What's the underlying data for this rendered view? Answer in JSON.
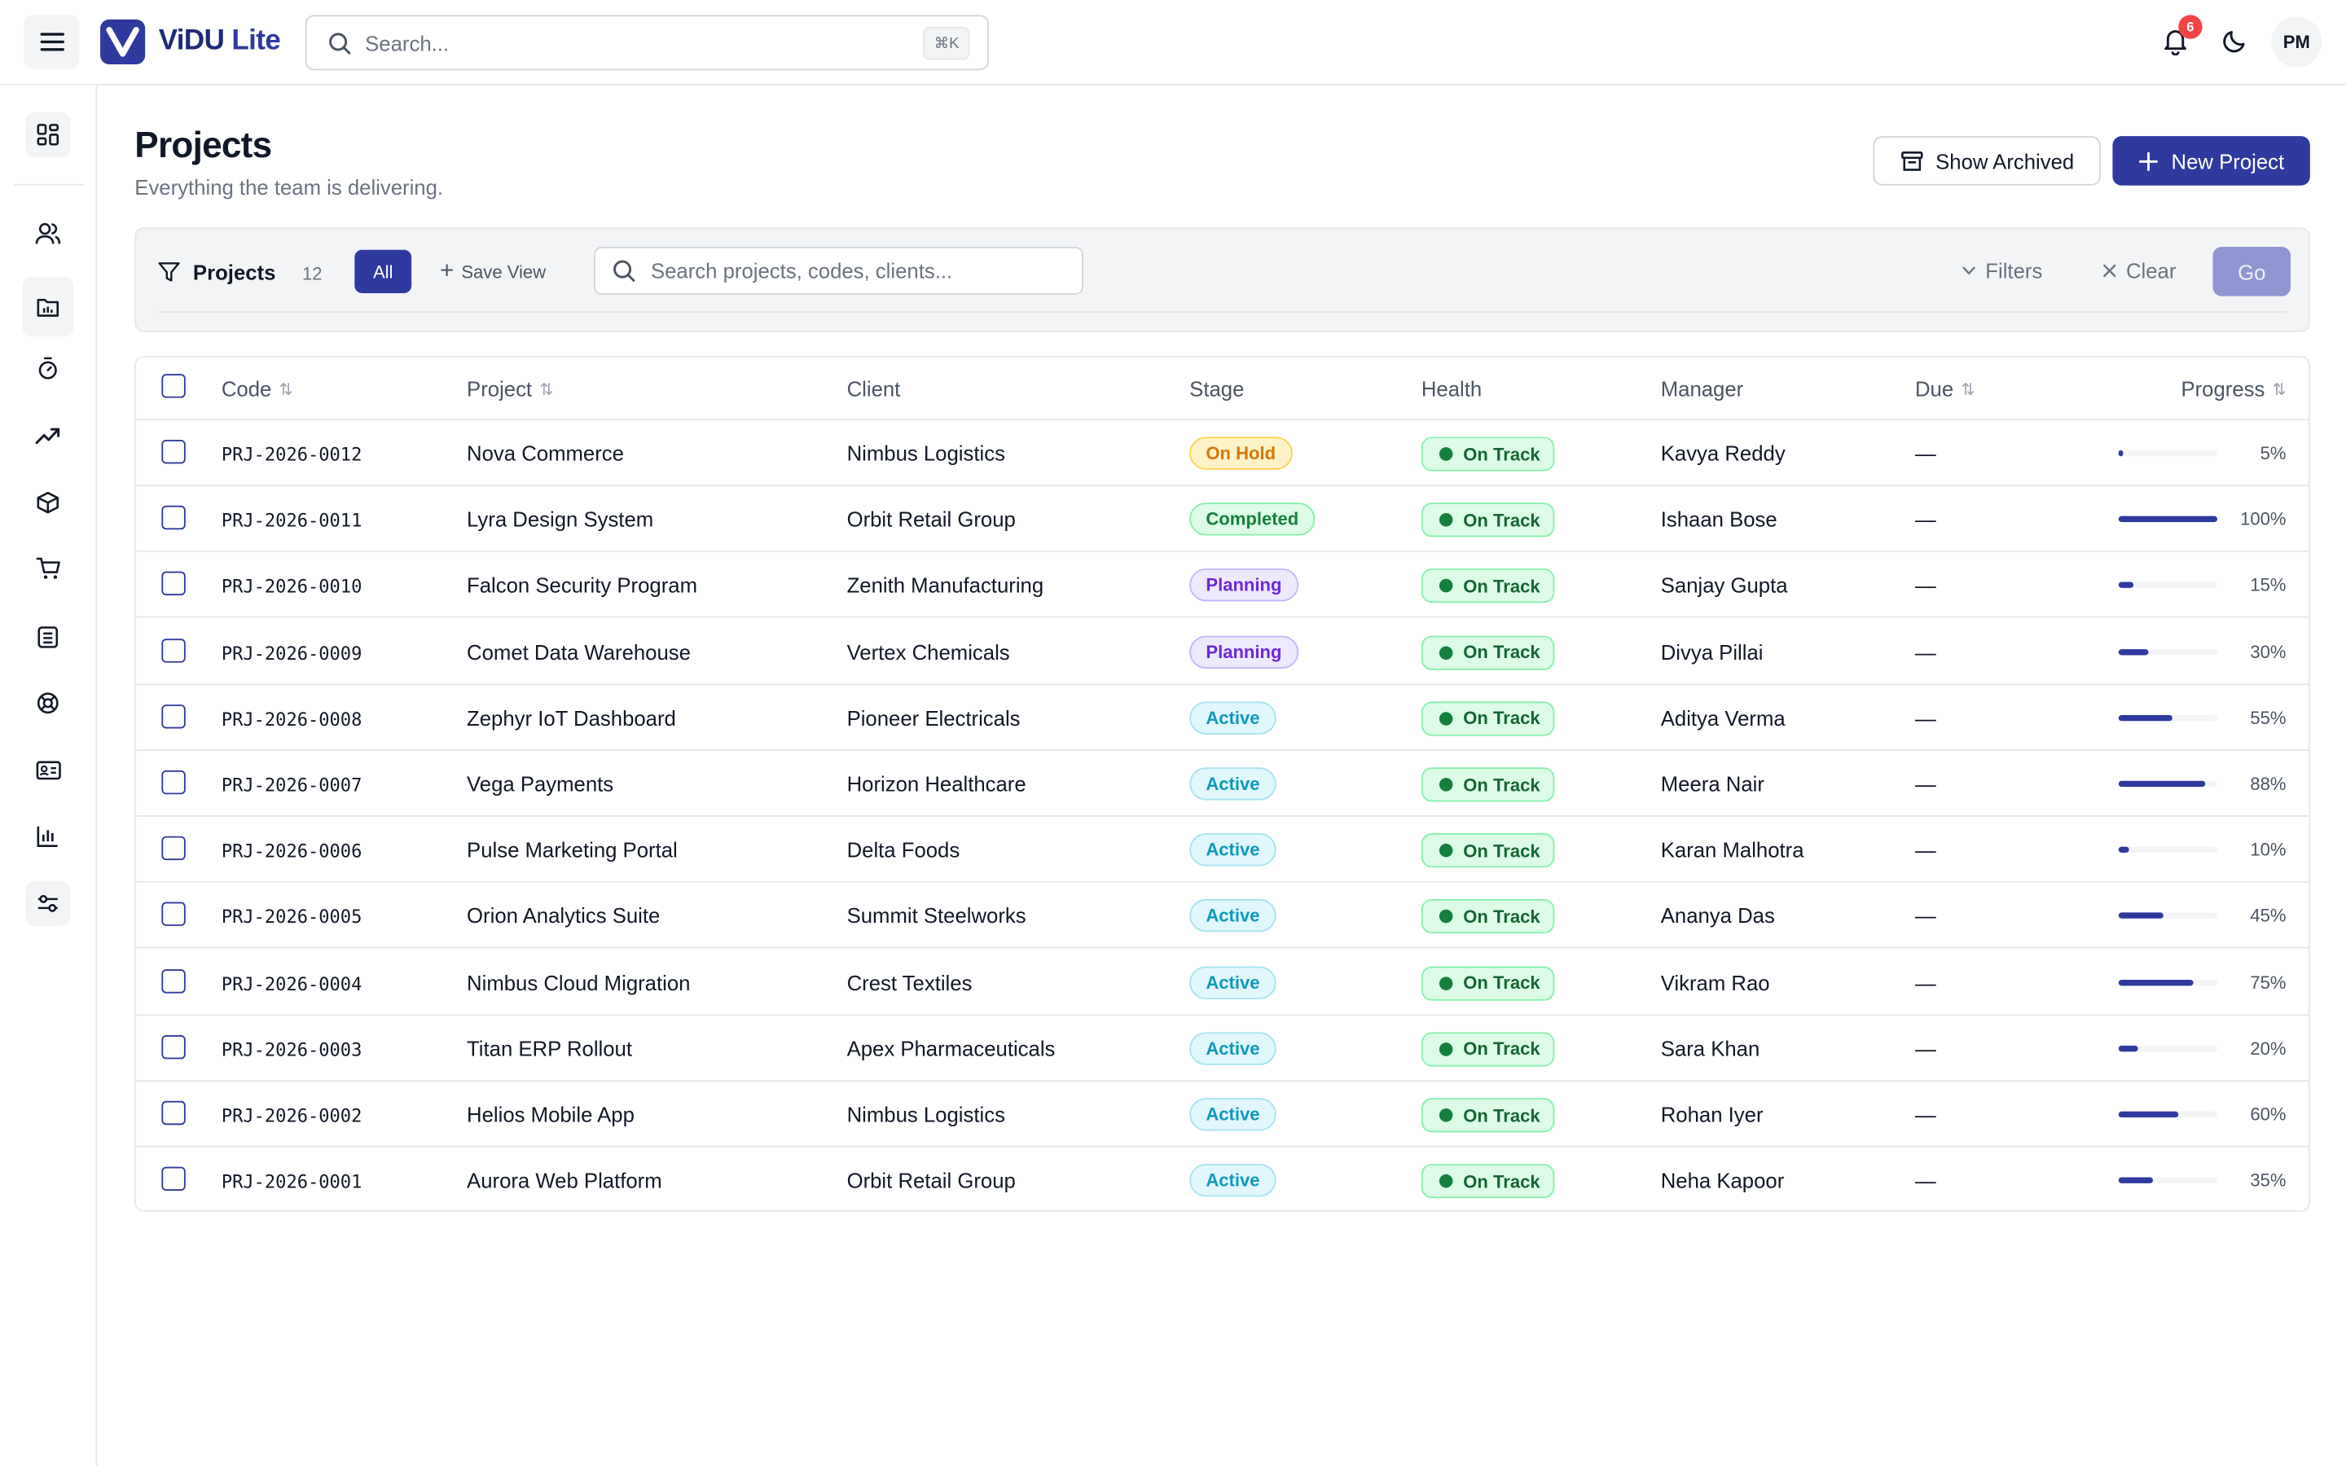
{
  "app": {
    "brand_main": "ViDU",
    "brand_suffix": "Lite"
  },
  "topbar": {
    "search_placeholder": "Search...",
    "search_shortcut": "⌘K",
    "notifications_count": "6",
    "avatar_initials": "PM"
  },
  "sidebar": {
    "icons": [
      "dashboard-icon",
      "users-icon",
      "folder-chart-icon",
      "stopwatch-icon",
      "trending-up-icon",
      "box-icon",
      "cart-icon",
      "ledger-icon",
      "lifebuoy-icon",
      "id-card-icon",
      "bar-chart-icon",
      "sliders-icon"
    ]
  },
  "page": {
    "title": "Projects",
    "subtitle": "Everything the team is delivering.",
    "show_archived_label": "Show Archived",
    "new_project_label": "New Project"
  },
  "filterbar": {
    "label": "Projects",
    "count": "12",
    "all_label": "All",
    "save_view_label": "Save View",
    "search_placeholder": "Search projects, codes, clients...",
    "filters_label": "Filters",
    "clear_label": "Clear",
    "go_label": "Go"
  },
  "table": {
    "columns": {
      "code": "Code",
      "project": "Project",
      "client": "Client",
      "stage": "Stage",
      "health": "Health",
      "manager": "Manager",
      "due": "Due",
      "progress": "Progress"
    },
    "rows": [
      {
        "code": "PRJ-2026-0012",
        "project": "Nova Commerce",
        "client": "Nimbus Logistics",
        "stage": "On Hold",
        "stage_kind": "hold",
        "health": "On Track",
        "manager": "Kavya Reddy",
        "due": "—",
        "progress": 5,
        "progress_label": "5%"
      },
      {
        "code": "PRJ-2026-0011",
        "project": "Lyra Design System",
        "client": "Orbit Retail Group",
        "stage": "Completed",
        "stage_kind": "completed",
        "health": "On Track",
        "manager": "Ishaan Bose",
        "due": "—",
        "progress": 100,
        "progress_label": "100%"
      },
      {
        "code": "PRJ-2026-0010",
        "project": "Falcon Security Program",
        "client": "Zenith Manufacturing",
        "stage": "Planning",
        "stage_kind": "planning",
        "health": "On Track",
        "manager": "Sanjay Gupta",
        "due": "—",
        "progress": 15,
        "progress_label": "15%"
      },
      {
        "code": "PRJ-2026-0009",
        "project": "Comet Data Warehouse",
        "client": "Vertex Chemicals",
        "stage": "Planning",
        "stage_kind": "planning",
        "health": "On Track",
        "manager": "Divya Pillai",
        "due": "—",
        "progress": 30,
        "progress_label": "30%"
      },
      {
        "code": "PRJ-2026-0008",
        "project": "Zephyr IoT Dashboard",
        "client": "Pioneer Electricals",
        "stage": "Active",
        "stage_kind": "active",
        "health": "On Track",
        "manager": "Aditya Verma",
        "due": "—",
        "progress": 55,
        "progress_label": "55%"
      },
      {
        "code": "PRJ-2026-0007",
        "project": "Vega Payments",
        "client": "Horizon Healthcare",
        "stage": "Active",
        "stage_kind": "active",
        "health": "On Track",
        "manager": "Meera Nair",
        "due": "—",
        "progress": 88,
        "progress_label": "88%"
      },
      {
        "code": "PRJ-2026-0006",
        "project": "Pulse Marketing Portal",
        "client": "Delta Foods",
        "stage": "Active",
        "stage_kind": "active",
        "health": "On Track",
        "manager": "Karan Malhotra",
        "due": "—",
        "progress": 10,
        "progress_label": "10%"
      },
      {
        "code": "PRJ-2026-0005",
        "project": "Orion Analytics Suite",
        "client": "Summit Steelworks",
        "stage": "Active",
        "stage_kind": "active",
        "health": "On Track",
        "manager": "Ananya Das",
        "due": "—",
        "progress": 45,
        "progress_label": "45%"
      },
      {
        "code": "PRJ-2026-0004",
        "project": "Nimbus Cloud Migration",
        "client": "Crest Textiles",
        "stage": "Active",
        "stage_kind": "active",
        "health": "On Track",
        "manager": "Vikram Rao",
        "due": "—",
        "progress": 75,
        "progress_label": "75%"
      },
      {
        "code": "PRJ-2026-0003",
        "project": "Titan ERP Rollout",
        "client": "Apex Pharmaceuticals",
        "stage": "Active",
        "stage_kind": "active",
        "health": "On Track",
        "manager": "Sara Khan",
        "due": "—",
        "progress": 20,
        "progress_label": "20%"
      },
      {
        "code": "PRJ-2026-0002",
        "project": "Helios Mobile App",
        "client": "Nimbus Logistics",
        "stage": "Active",
        "stage_kind": "active",
        "health": "On Track",
        "manager": "Rohan Iyer",
        "due": "—",
        "progress": 60,
        "progress_label": "60%"
      },
      {
        "code": "PRJ-2026-0001",
        "project": "Aurora Web Platform",
        "client": "Orbit Retail Group",
        "stage": "Active",
        "stage_kind": "active",
        "health": "On Track",
        "manager": "Neha Kapoor",
        "due": "—",
        "progress": 35,
        "progress_label": "35%"
      }
    ]
  },
  "colors": {
    "brand": "#2f3a9e",
    "go_disabled": "#8f95cf",
    "badge_red": "#ef4444",
    "on_track_green": "#15803d"
  }
}
